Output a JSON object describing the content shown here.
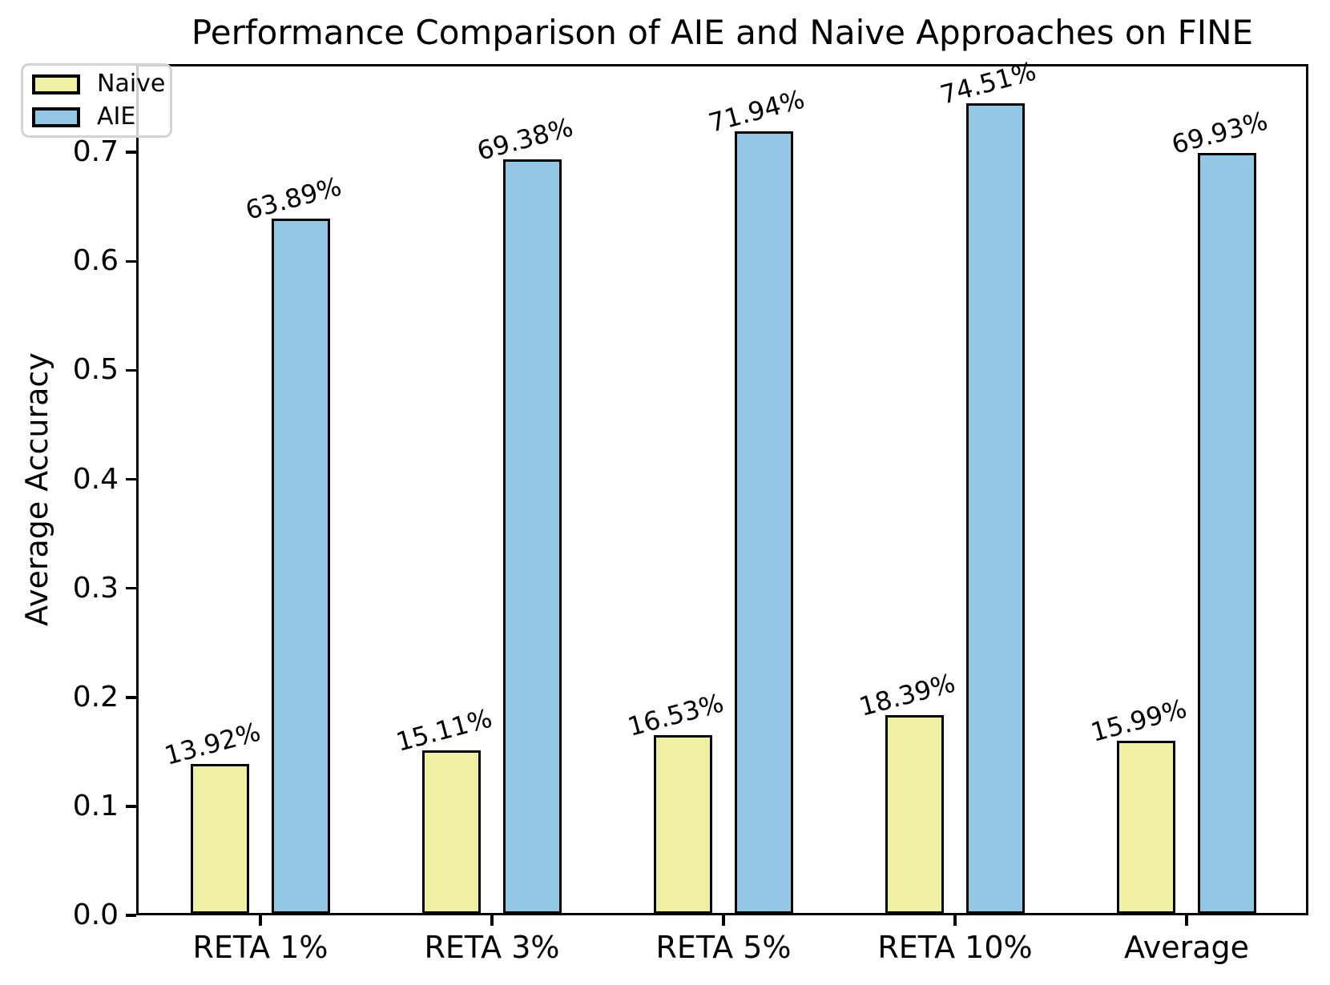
{
  "title": "Performance Comparison of AIE and Naive Approaches on FINE",
  "chart_data": {
    "type": "bar",
    "title": "Performance Comparison of AIE and Naive Approaches on FINE",
    "xlabel": "",
    "ylabel": "Average Accuracy",
    "categories": [
      "RETA 1%",
      "RETA 3%",
      "RETA 5%",
      "RETA 10%",
      "Average"
    ],
    "series": [
      {
        "name": "Naive",
        "color": "#F0F0A2",
        "values": [
          0.1392,
          0.1511,
          0.1653,
          0.1839,
          0.1599
        ],
        "labels": [
          "13.92%",
          "15.11%",
          "16.53%",
          "18.39%",
          "15.99%"
        ]
      },
      {
        "name": "AIE",
        "color": "#92C8E6",
        "values": [
          0.6389,
          0.6938,
          0.7194,
          0.7451,
          0.6993
        ],
        "labels": [
          "63.89%",
          "69.38%",
          "71.94%",
          "74.51%",
          "69.93%"
        ]
      }
    ],
    "ylim": [
      0,
      0.781
    ],
    "yticks": [
      "0.0",
      "0.1",
      "0.2",
      "0.3",
      "0.4",
      "0.5",
      "0.6",
      "0.7"
    ],
    "grid": false,
    "legend_position": "upper left",
    "bar_edge_color": "#000000",
    "axis_color": "#000000",
    "value_label_rotation_deg": -15
  }
}
